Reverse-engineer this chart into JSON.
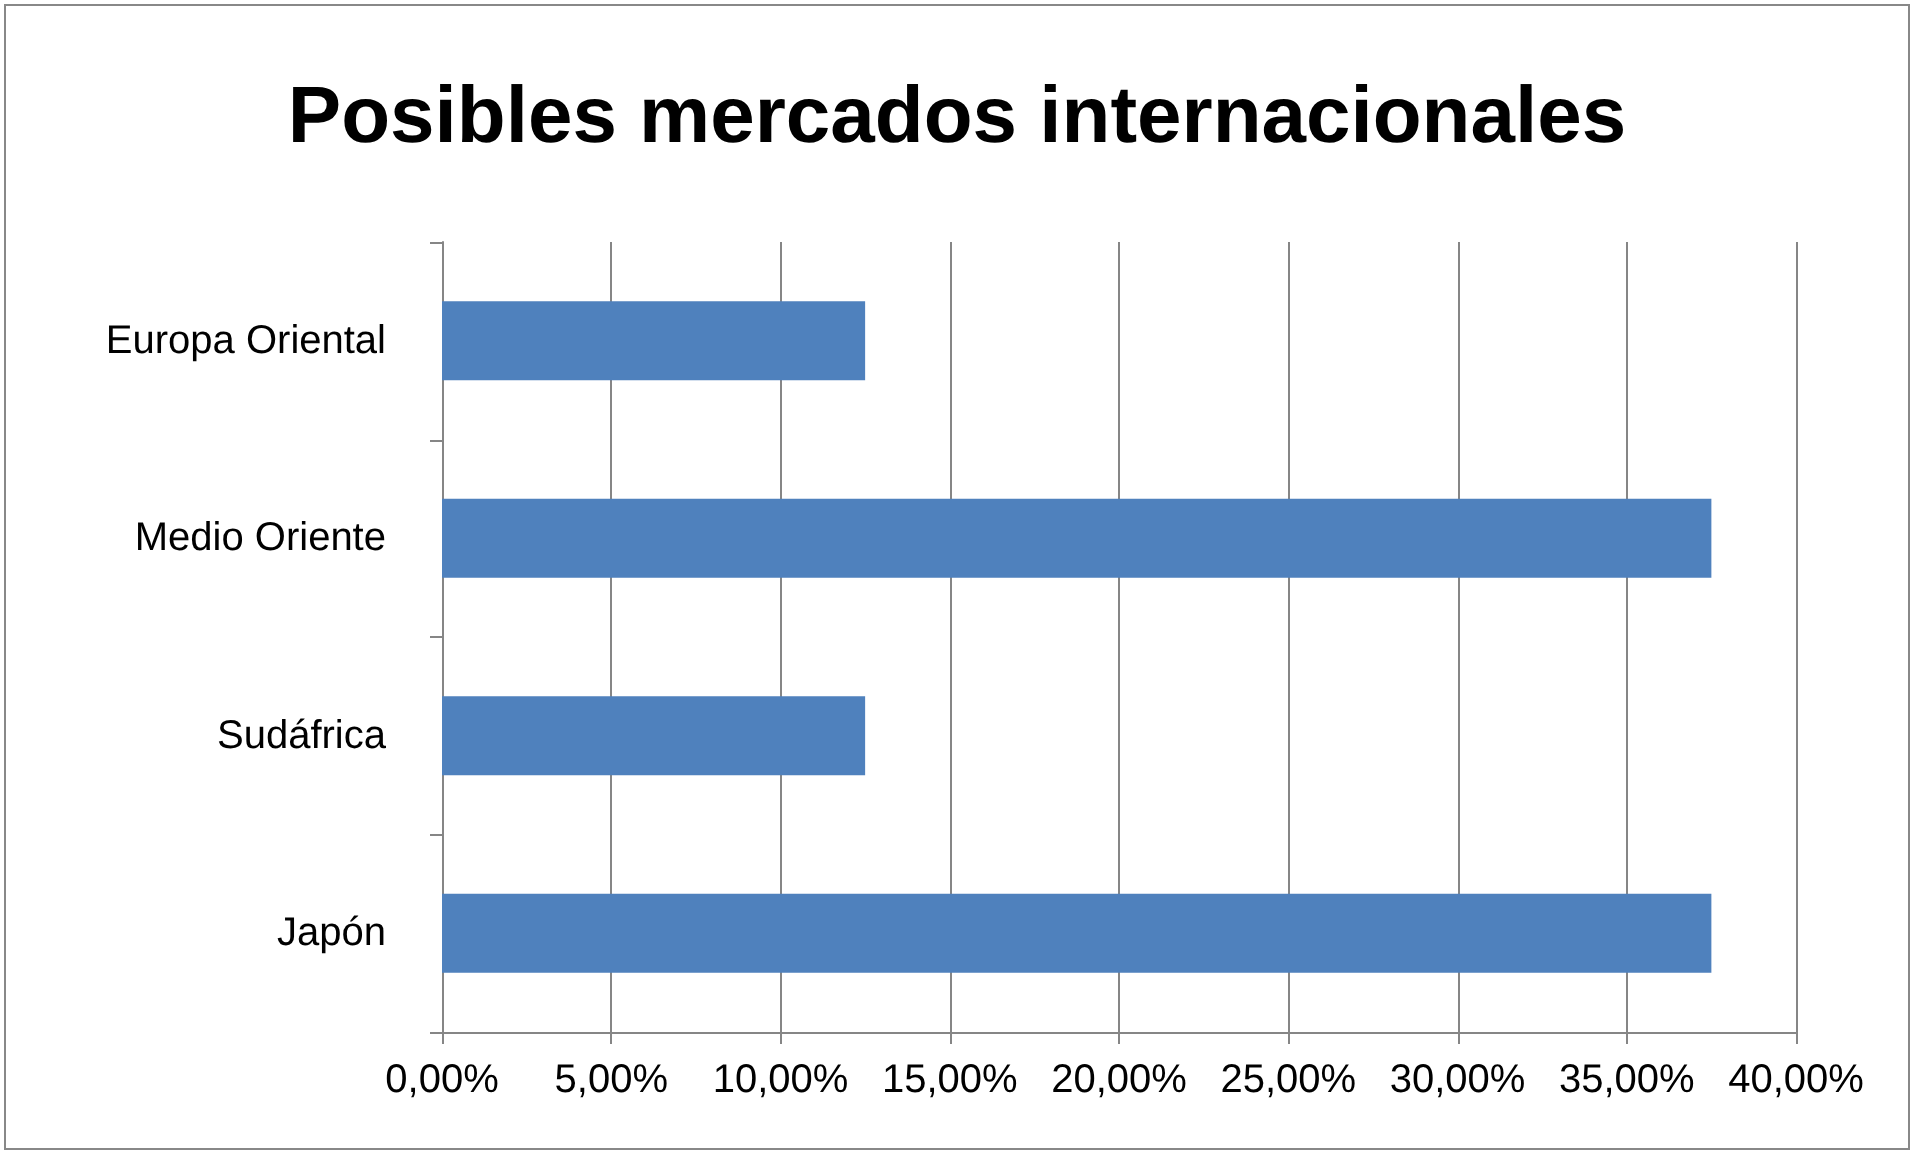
{
  "chart_data": {
    "type": "bar",
    "orientation": "horizontal",
    "title": "Posibles mercados internacionales",
    "categories": [
      "Europa Oriental",
      "Medio Oriente",
      "Sudáfrica",
      "Japón"
    ],
    "values": [
      12.5,
      37.5,
      12.5,
      37.5
    ],
    "color": "#4f81bd",
    "xlim": [
      0,
      40
    ],
    "xticks": [
      {
        "value": 0,
        "label": "0,00%"
      },
      {
        "value": 5,
        "label": "5,00%"
      },
      {
        "value": 10,
        "label": "10,00%"
      },
      {
        "value": 15,
        "label": "15,00%"
      },
      {
        "value": 20,
        "label": "20,00%"
      },
      {
        "value": 25,
        "label": "25,00%"
      },
      {
        "value": 30,
        "label": "30,00%"
      },
      {
        "value": 35,
        "label": "35,00%"
      },
      {
        "value": 40,
        "label": "40,00%"
      }
    ],
    "grid": "x"
  }
}
